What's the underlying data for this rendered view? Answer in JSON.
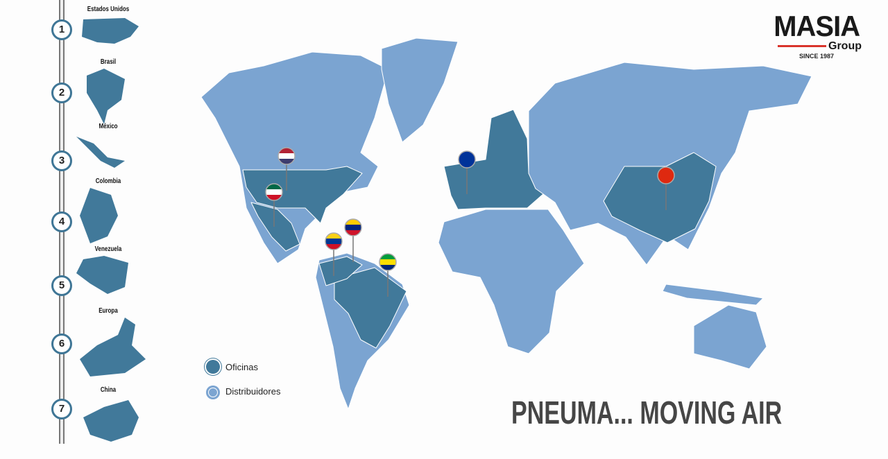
{
  "colors": {
    "offices": "#41799a",
    "distributors": "#7ba4d1",
    "accent": "#d9342b"
  },
  "timeline": [
    {
      "number": "1",
      "label": "Estados Unidos"
    },
    {
      "number": "2",
      "label": "Brasil"
    },
    {
      "number": "3",
      "label": "México"
    },
    {
      "number": "4",
      "label": "Colombia"
    },
    {
      "number": "5",
      "label": "Venezuela"
    },
    {
      "number": "6",
      "label": "Europa"
    },
    {
      "number": "7",
      "label": "China"
    }
  ],
  "logo": {
    "main": "MASIA",
    "sub": "Group",
    "since": "SINCE 1987"
  },
  "legend": {
    "offices": "Oficinas",
    "distributors": "Distribuidores"
  },
  "slogan": "PNEUMA... MOVING AIR",
  "pins": [
    "usa-flag",
    "mexico-flag",
    "venezuela-flag",
    "colombia-flag",
    "brazil-flag",
    "eu-flag",
    "china-flag"
  ]
}
